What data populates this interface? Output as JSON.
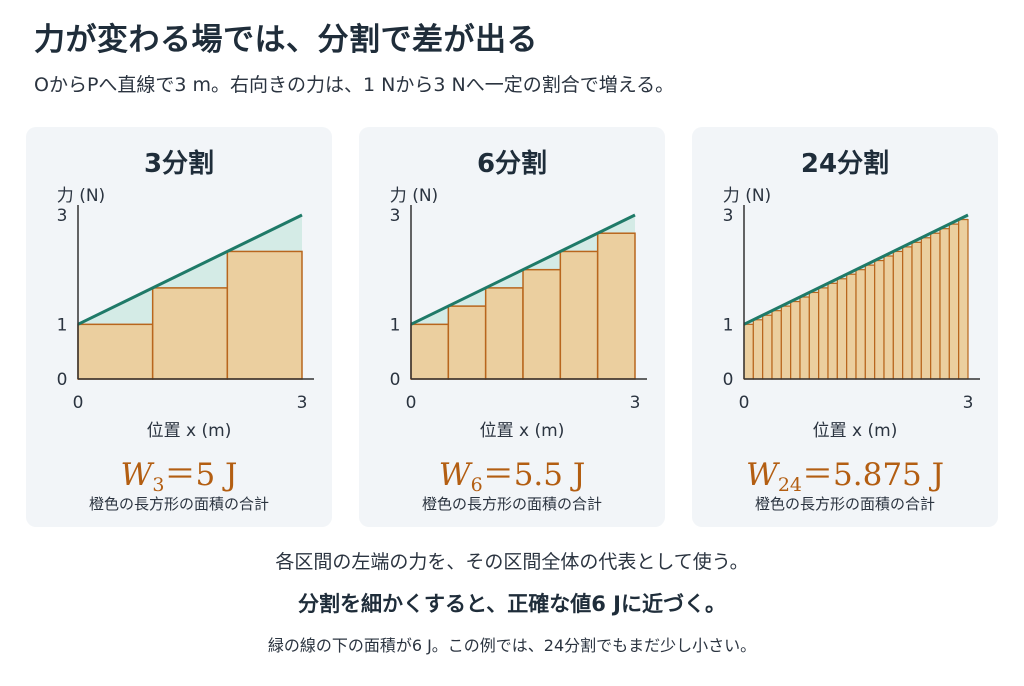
{
  "title": "力が変わる場では、分割で差が出る",
  "subtitle": "OからPへ直線で3 m。右向きの力は、1 Nから3 Nへ一定の割合で増える。",
  "colors": {
    "line": "#1f7a68",
    "bar_fill": "#ebcf9f",
    "bar_stroke": "#b8661d",
    "gap_fill": "#d4ebe6",
    "formula": "#b35e12"
  },
  "panels": [
    {
      "title": "3分割",
      "n": 3,
      "formula_sub": "3",
      "formula_value": "5 J"
    },
    {
      "title": "6分割",
      "n": 6,
      "formula_sub": "6",
      "formula_value": "5.5 J"
    },
    {
      "title": "24分割",
      "n": 24,
      "formula_sub": "24",
      "formula_value": "5.875 J"
    }
  ],
  "axis": {
    "ylabel": "力 (N)",
    "xlabel": "位置 x (m)",
    "yticks": [
      "3",
      "1",
      "0"
    ],
    "xticks": [
      "0",
      "3"
    ]
  },
  "formula_symbol": "W",
  "formula_eq": "＝",
  "caption": "橙色の長方形の面積の合計",
  "chart_data": [
    {
      "type": "bar",
      "x_range": [
        0,
        3
      ],
      "y_range": [
        0,
        3
      ],
      "force_line": [
        [
          0,
          1
        ],
        [
          3,
          3
        ]
      ],
      "n": 3,
      "left_endpoint_values": [
        1,
        1.667,
        2.333
      ],
      "sum": 5
    },
    {
      "type": "bar",
      "x_range": [
        0,
        3
      ],
      "y_range": [
        0,
        3
      ],
      "force_line": [
        [
          0,
          1
        ],
        [
          3,
          3
        ]
      ],
      "n": 6,
      "left_endpoint_values": [
        1,
        1.333,
        1.667,
        2,
        2.333,
        2.667
      ],
      "sum": 5.5
    },
    {
      "type": "bar",
      "x_range": [
        0,
        3
      ],
      "y_range": [
        0,
        3
      ],
      "force_line": [
        [
          0,
          1
        ],
        [
          3,
          3
        ]
      ],
      "n": 24,
      "sum": 5.875
    }
  ],
  "footer": {
    "line1": "各区間の左端の力を、その区間全体の代表として使う。",
    "line2": "分割を細かくすると、正確な値6 Jに近づく。",
    "line3": "緑の線の下の面積が6 J。この例では、24分割でもまだ少し小さい。"
  }
}
